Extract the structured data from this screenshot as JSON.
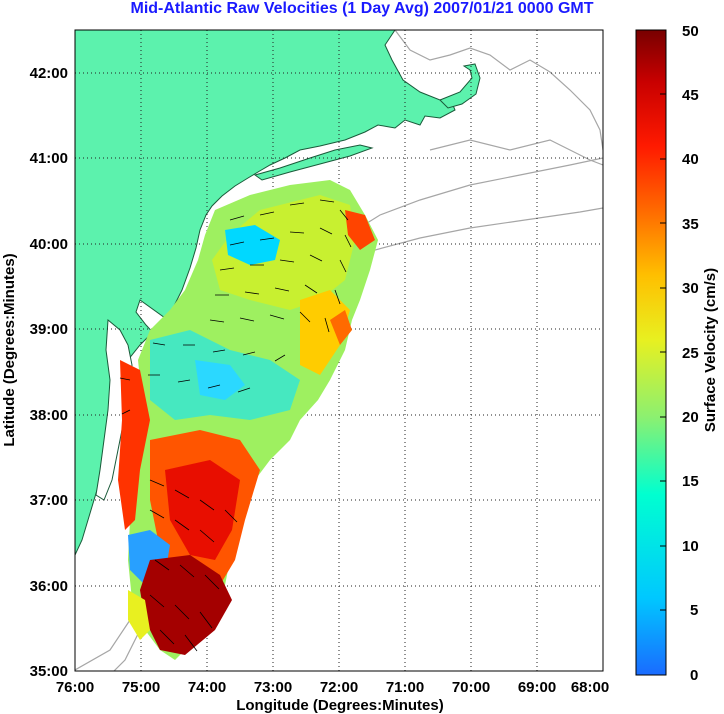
{
  "title": "Mid-Atlantic Raw Velocities (1 Day Avg) 2007/01/21 0000 GMT",
  "map": {
    "xlabel": "Longitude (Degrees:Minutes)",
    "ylabel": "Latitude (Degrees:Minutes)",
    "x_ticks": [
      "76:00",
      "75:00",
      "74:00",
      "73:00",
      "72:00",
      "71:00",
      "70:00",
      "69:00",
      "68:00"
    ],
    "y_ticks": [
      "42:00",
      "41:00",
      "40:00",
      "39:00",
      "38:00",
      "37:00",
      "36:00",
      "35:00"
    ],
    "lon_range": [
      -76,
      -68
    ],
    "lat_range": [
      35,
      42.5
    ],
    "land_color": "#5cf2ad",
    "contour_color": "#a6a6a6",
    "grid": "dotted"
  },
  "colorbar": {
    "label": "Surface Velocity (cm/s)",
    "ticks": [
      "50",
      "45",
      "40",
      "35",
      "30",
      "25",
      "20",
      "15",
      "10",
      "5",
      "0"
    ],
    "range": [
      0,
      50
    ],
    "colormap": "jet"
  }
}
